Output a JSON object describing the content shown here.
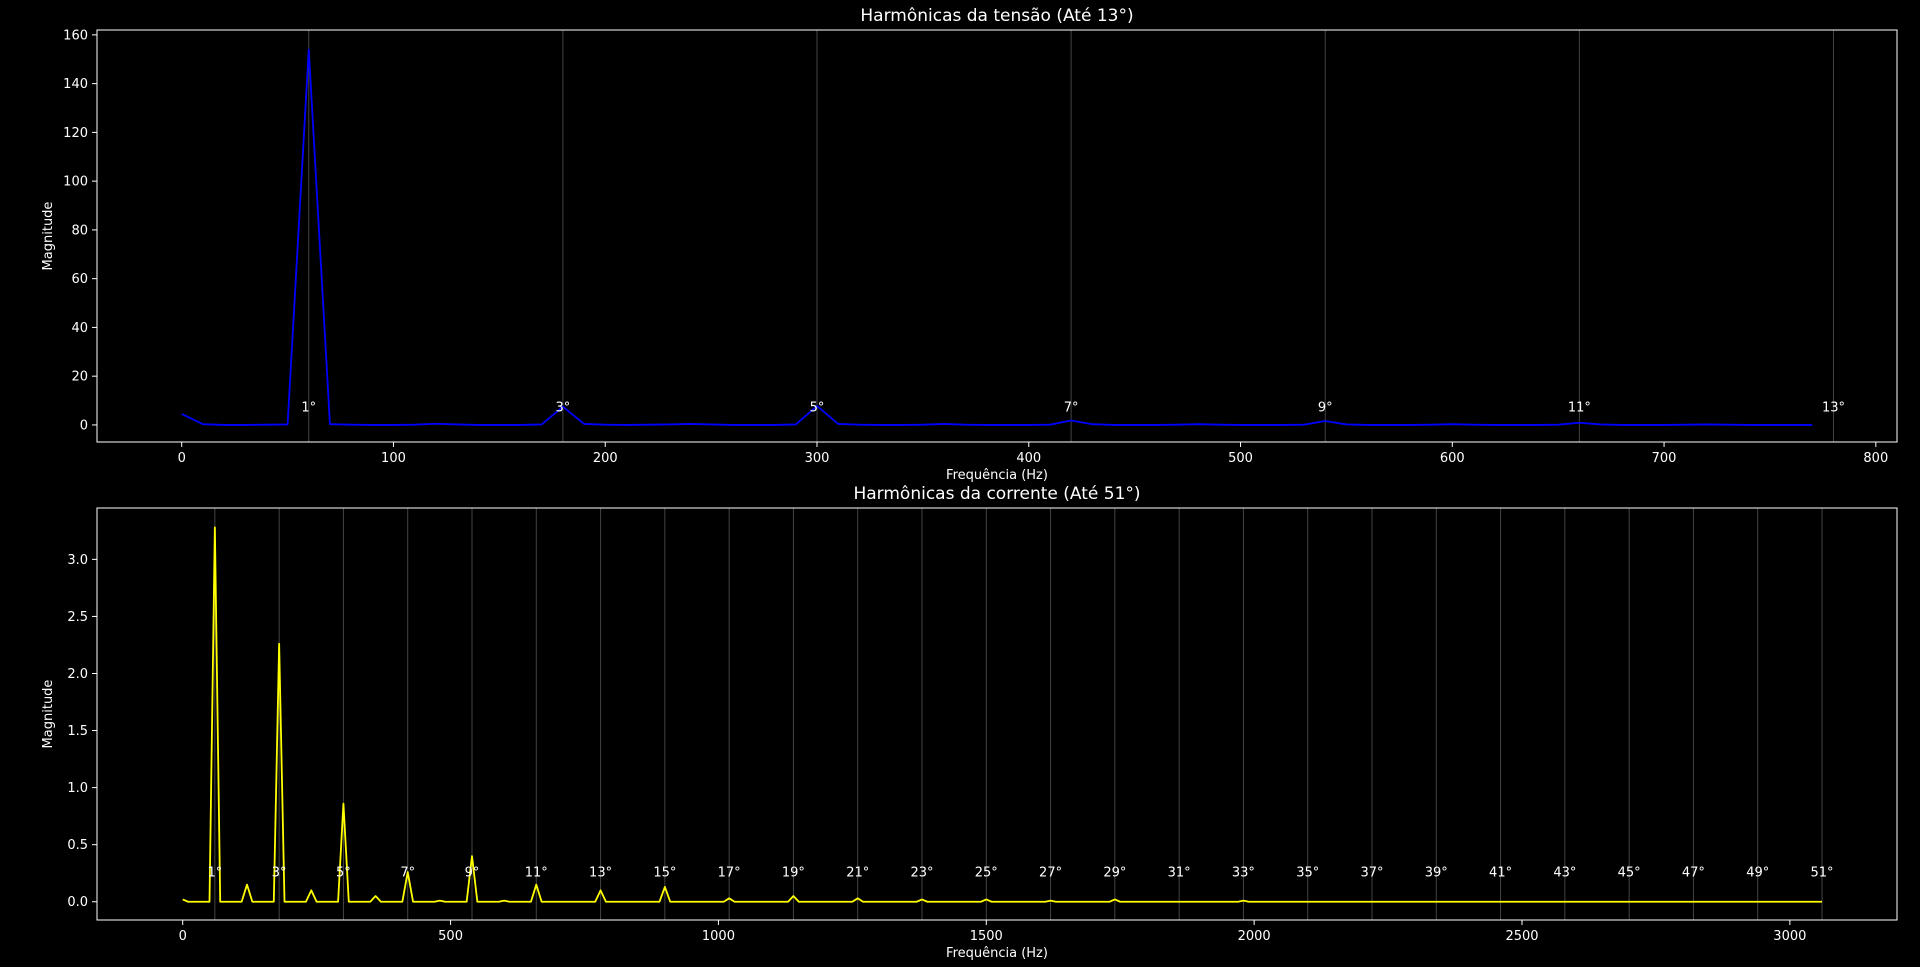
{
  "chart_data": [
    {
      "type": "line",
      "title": "Harmônicas da tensão (Até 13°)",
      "xlabel": "Frequência (Hz)",
      "ylabel": "Magnitude",
      "xlim": [
        -40,
        810
      ],
      "ylim": [
        -7,
        162
      ],
      "xticks": [
        0,
        100,
        200,
        300,
        400,
        500,
        600,
        700,
        800
      ],
      "yticks": [
        0,
        20,
        40,
        60,
        80,
        100,
        120,
        140,
        160
      ],
      "grid": false,
      "line_color": "#0000ff",
      "harmonic_line_color": "#555555",
      "harmonics": [
        {
          "label": "1°",
          "freq": 60
        },
        {
          "label": "3°",
          "freq": 180
        },
        {
          "label": "5°",
          "freq": 300
        },
        {
          "label": "7°",
          "freq": 420
        },
        {
          "label": "9°",
          "freq": 540
        },
        {
          "label": "11°",
          "freq": 660
        },
        {
          "label": "13°",
          "freq": 780
        }
      ],
      "series": [
        {
          "points": [
            [
              0,
              4.5
            ],
            [
              10,
              0.3
            ],
            [
              20,
              0
            ],
            [
              30,
              0
            ],
            [
              40,
              0.1
            ],
            [
              50,
              0.2
            ],
            [
              60,
              154
            ],
            [
              70,
              0.3
            ],
            [
              80,
              0.1
            ],
            [
              90,
              0
            ],
            [
              100,
              0
            ],
            [
              110,
              0.1
            ],
            [
              120,
              0.5
            ],
            [
              130,
              0.2
            ],
            [
              140,
              0
            ],
            [
              150,
              0
            ],
            [
              160,
              0
            ],
            [
              170,
              0.2
            ],
            [
              180,
              7.5
            ],
            [
              190,
              0.4
            ],
            [
              200,
              0.1
            ],
            [
              210,
              0
            ],
            [
              220,
              0.1
            ],
            [
              230,
              0.2
            ],
            [
              240,
              0.4
            ],
            [
              250,
              0.2
            ],
            [
              260,
              0
            ],
            [
              270,
              0
            ],
            [
              280,
              0
            ],
            [
              290,
              0.2
            ],
            [
              300,
              7.8
            ],
            [
              310,
              0.4
            ],
            [
              320,
              0.1
            ],
            [
              330,
              0
            ],
            [
              340,
              0
            ],
            [
              350,
              0.1
            ],
            [
              360,
              0.4
            ],
            [
              370,
              0.1
            ],
            [
              380,
              0
            ],
            [
              390,
              0
            ],
            [
              400,
              0
            ],
            [
              410,
              0.1
            ],
            [
              420,
              1.8
            ],
            [
              430,
              0.3
            ],
            [
              440,
              0
            ],
            [
              450,
              0
            ],
            [
              460,
              0
            ],
            [
              470,
              0.1
            ],
            [
              480,
              0.3
            ],
            [
              490,
              0.1
            ],
            [
              500,
              0
            ],
            [
              510,
              0
            ],
            [
              520,
              0
            ],
            [
              530,
              0.1
            ],
            [
              540,
              1.6
            ],
            [
              550,
              0.2
            ],
            [
              560,
              0
            ],
            [
              570,
              0
            ],
            [
              580,
              0
            ],
            [
              590,
              0.1
            ],
            [
              600,
              0.3
            ],
            [
              610,
              0.1
            ],
            [
              620,
              0
            ],
            [
              630,
              0
            ],
            [
              640,
              0
            ],
            [
              650,
              0.1
            ],
            [
              660,
              0.9
            ],
            [
              670,
              0.2
            ],
            [
              680,
              0
            ],
            [
              690,
              0
            ],
            [
              700,
              0
            ],
            [
              710,
              0.1
            ],
            [
              720,
              0.2
            ],
            [
              730,
              0.1
            ],
            [
              740,
              0
            ],
            [
              750,
              0
            ],
            [
              760,
              0
            ],
            [
              770,
              0
            ]
          ]
        }
      ]
    },
    {
      "type": "line",
      "title": "Harmônicas da corrente (Até 51°)",
      "xlabel": "Frequência (Hz)",
      "ylabel": "Magnitude",
      "xlim": [
        -160,
        3200
      ],
      "ylim": [
        -0.16,
        3.45
      ],
      "xticks": [
        0,
        500,
        1000,
        1500,
        2000,
        2500,
        3000
      ],
      "yticks": [
        0.0,
        0.5,
        1.0,
        1.5,
        2.0,
        2.5,
        3.0
      ],
      "grid": false,
      "line_color": "#ffff00",
      "harmonic_line_color": "#555555",
      "harmonics": [
        {
          "label": "1°",
          "freq": 60
        },
        {
          "label": "3°",
          "freq": 180
        },
        {
          "label": "5°",
          "freq": 300
        },
        {
          "label": "7°",
          "freq": 420
        },
        {
          "label": "9°",
          "freq": 540
        },
        {
          "label": "11°",
          "freq": 660
        },
        {
          "label": "13°",
          "freq": 780
        },
        {
          "label": "15°",
          "freq": 900
        },
        {
          "label": "17°",
          "freq": 1020
        },
        {
          "label": "19°",
          "freq": 1140
        },
        {
          "label": "21°",
          "freq": 1260
        },
        {
          "label": "23°",
          "freq": 1380
        },
        {
          "label": "25°",
          "freq": 1500
        },
        {
          "label": "27°",
          "freq": 1620
        },
        {
          "label": "29°",
          "freq": 1740
        },
        {
          "label": "31°",
          "freq": 1860
        },
        {
          "label": "33°",
          "freq": 1980
        },
        {
          "label": "35°",
          "freq": 2100
        },
        {
          "label": "37°",
          "freq": 2220
        },
        {
          "label": "39°",
          "freq": 2340
        },
        {
          "label": "41°",
          "freq": 2460
        },
        {
          "label": "43°",
          "freq": 2580
        },
        {
          "label": "45°",
          "freq": 2700
        },
        {
          "label": "47°",
          "freq": 2820
        },
        {
          "label": "49°",
          "freq": 2940
        },
        {
          "label": "51°",
          "freq": 3060
        }
      ],
      "series": [
        {
          "points": [
            [
              0,
              0.02
            ],
            [
              10,
              0.0
            ],
            [
              50,
              0.0
            ],
            [
              60,
              3.28
            ],
            [
              70,
              0.0
            ],
            [
              110,
              0.0
            ],
            [
              120,
              0.15
            ],
            [
              130,
              0.0
            ],
            [
              170,
              0.0
            ],
            [
              180,
              2.26
            ],
            [
              190,
              0.0
            ],
            [
              230,
              0.0
            ],
            [
              240,
              0.1
            ],
            [
              250,
              0.0
            ],
            [
              290,
              0.0
            ],
            [
              300,
              0.86
            ],
            [
              310,
              0.0
            ],
            [
              350,
              0.0
            ],
            [
              360,
              0.05
            ],
            [
              370,
              0.0
            ],
            [
              410,
              0.0
            ],
            [
              420,
              0.26
            ],
            [
              430,
              0.0
            ],
            [
              470,
              0.0
            ],
            [
              480,
              0.01
            ],
            [
              490,
              0.0
            ],
            [
              530,
              0.0
            ],
            [
              540,
              0.4
            ],
            [
              550,
              0.0
            ],
            [
              590,
              0.0
            ],
            [
              600,
              0.01
            ],
            [
              610,
              0.0
            ],
            [
              650,
              0.0
            ],
            [
              660,
              0.15
            ],
            [
              670,
              0.0
            ],
            [
              770,
              0.0
            ],
            [
              780,
              0.1
            ],
            [
              790,
              0.0
            ],
            [
              890,
              0.0
            ],
            [
              900,
              0.13
            ],
            [
              910,
              0.0
            ],
            [
              1010,
              0.0
            ],
            [
              1020,
              0.03
            ],
            [
              1030,
              0.0
            ],
            [
              1130,
              0.0
            ],
            [
              1140,
              0.05
            ],
            [
              1150,
              0.0
            ],
            [
              1250,
              0.0
            ],
            [
              1260,
              0.03
            ],
            [
              1270,
              0.0
            ],
            [
              1370,
              0.0
            ],
            [
              1380,
              0.02
            ],
            [
              1390,
              0.0
            ],
            [
              1490,
              0.0
            ],
            [
              1500,
              0.02
            ],
            [
              1510,
              0.0
            ],
            [
              1610,
              0.0
            ],
            [
              1620,
              0.01
            ],
            [
              1630,
              0.0
            ],
            [
              1730,
              0.0
            ],
            [
              1740,
              0.02
            ],
            [
              1750,
              0.0
            ],
            [
              1970,
              0.0
            ],
            [
              1980,
              0.01
            ],
            [
              1990,
              0.0
            ],
            [
              3060,
              0.0
            ]
          ]
        }
      ]
    }
  ]
}
